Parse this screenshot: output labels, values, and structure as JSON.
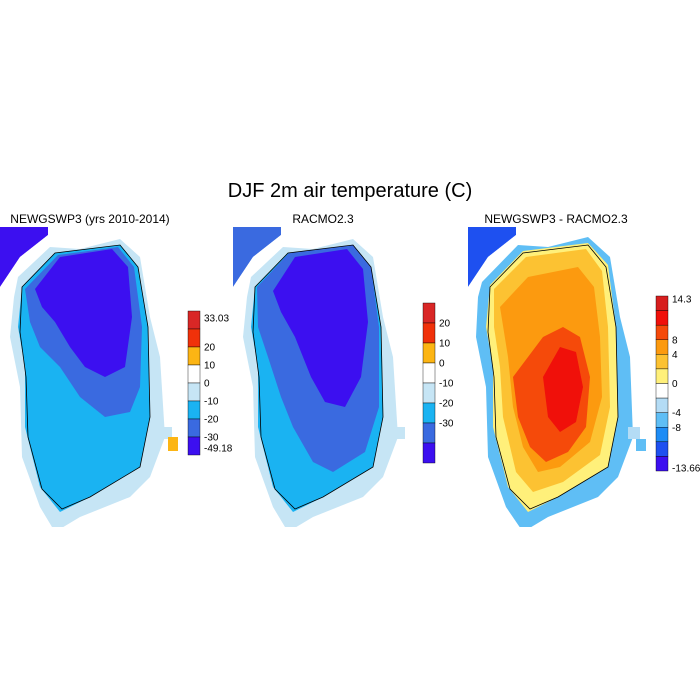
{
  "title": "DJF 2m air temperature (C)",
  "panels": [
    {
      "title": "NEWGSWP3 (yrs 2010-2014)",
      "colorbar": {
        "labels": [
          "33.03",
          "20",
          "10",
          "0",
          "-10",
          "-20",
          "-30",
          "-49.18"
        ],
        "colors": [
          "#d92726",
          "#f0310a",
          "#fcb514",
          "#ffffff",
          "#c6e5f5",
          "#1ab3f2",
          "#3a6ae0",
          "#3c0ff0"
        ]
      }
    },
    {
      "title": "RACMO2.3",
      "colorbar": {
        "labels": [
          "20",
          "10",
          "0",
          "-10",
          "-20",
          "-30"
        ],
        "colors": [
          "#d92726",
          "#f0310a",
          "#fcb514",
          "#ffffff",
          "#c6e5f5",
          "#1ab3f2",
          "#3a6ae0",
          "#3c0ff0"
        ]
      }
    },
    {
      "title": "NEWGSWP3 - RACMO2.3",
      "colorbar": {
        "labels": [
          "14.3",
          "8",
          "4",
          "0",
          "-4",
          "-8",
          "-13.66"
        ],
        "colors": [
          "#d71e1e",
          "#f0100a",
          "#f54a0a",
          "#fc9a0f",
          "#fcc232",
          "#fff07a",
          "#ffffff",
          "#b4dcf5",
          "#5fbef5",
          "#1e8cf5",
          "#1e50f0",
          "#3c0ff0"
        ]
      }
    }
  ]
}
